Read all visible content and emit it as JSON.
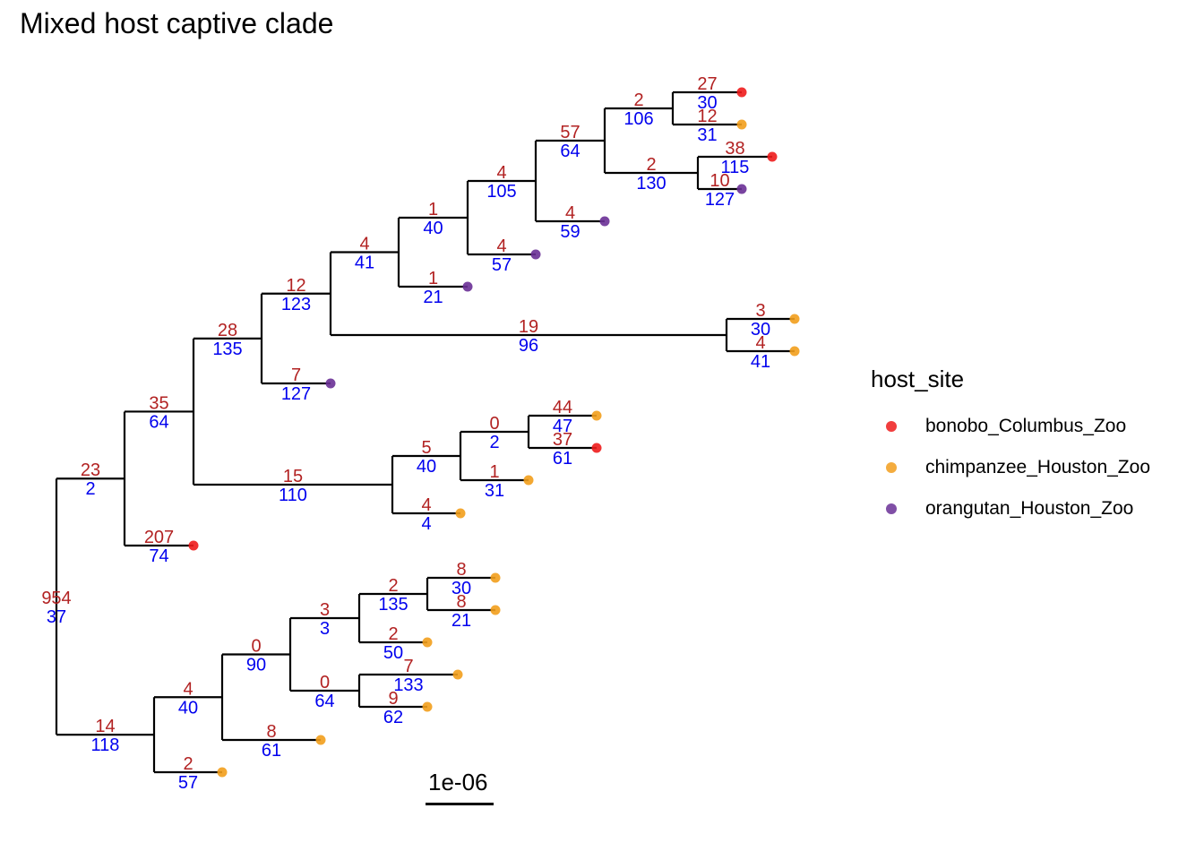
{
  "title": "Mixed host captive clade",
  "legend": {
    "title": "host_site",
    "items": [
      {
        "label": "bonobo_Columbus_Zoo",
        "color": "#ee1c1c"
      },
      {
        "label": "chimpanzee_Houston_Zoo",
        "color": "#f29e1c"
      },
      {
        "label": "orangutan_Houston_Zoo",
        "color": "#6a3096"
      }
    ]
  },
  "scale_bar": {
    "label": "1e-06"
  },
  "edge_labels": [
    {
      "top": "954",
      "bottom": "37"
    },
    {
      "top": "23",
      "bottom": "2"
    },
    {
      "top": "14",
      "bottom": "118"
    },
    {
      "top": "35",
      "bottom": "64"
    },
    {
      "top": "207",
      "bottom": "74"
    },
    {
      "top": "28",
      "bottom": "135"
    },
    {
      "top": "15",
      "bottom": "110"
    },
    {
      "top": "12",
      "bottom": "123"
    },
    {
      "top": "7",
      "bottom": "127"
    },
    {
      "top": "4",
      "bottom": "41"
    },
    {
      "top": "19",
      "bottom": "96"
    },
    {
      "top": "1",
      "bottom": "40"
    },
    {
      "top": "1",
      "bottom": "21"
    },
    {
      "top": "4",
      "bottom": "105"
    },
    {
      "top": "4",
      "bottom": "57"
    },
    {
      "top": "57",
      "bottom": "64"
    },
    {
      "top": "4",
      "bottom": "59"
    },
    {
      "top": "2",
      "bottom": "106"
    },
    {
      "top": "2",
      "bottom": "130"
    },
    {
      "top": "27",
      "bottom": "30"
    },
    {
      "top": "12",
      "bottom": "31"
    },
    {
      "top": "38",
      "bottom": "115"
    },
    {
      "top": "10",
      "bottom": "127"
    },
    {
      "top": "3",
      "bottom": "30"
    },
    {
      "top": "4",
      "bottom": "41"
    },
    {
      "top": "5",
      "bottom": "40"
    },
    {
      "top": "4",
      "bottom": "4"
    },
    {
      "top": "0",
      "bottom": "2"
    },
    {
      "top": "1",
      "bottom": "31"
    },
    {
      "top": "44",
      "bottom": "47"
    },
    {
      "top": "37",
      "bottom": "61"
    },
    {
      "top": "4",
      "bottom": "40"
    },
    {
      "top": "2",
      "bottom": "57"
    },
    {
      "top": "0",
      "bottom": "90"
    },
    {
      "top": "8",
      "bottom": "61"
    },
    {
      "top": "3",
      "bottom": "3"
    },
    {
      "top": "0",
      "bottom": "64"
    },
    {
      "top": "2",
      "bottom": "135"
    },
    {
      "top": "2",
      "bottom": "50"
    },
    {
      "top": "8",
      "bottom": "30"
    },
    {
      "top": "8",
      "bottom": "21"
    },
    {
      "top": "7",
      "bottom": "133"
    },
    {
      "top": "9",
      "bottom": "62"
    }
  ]
}
